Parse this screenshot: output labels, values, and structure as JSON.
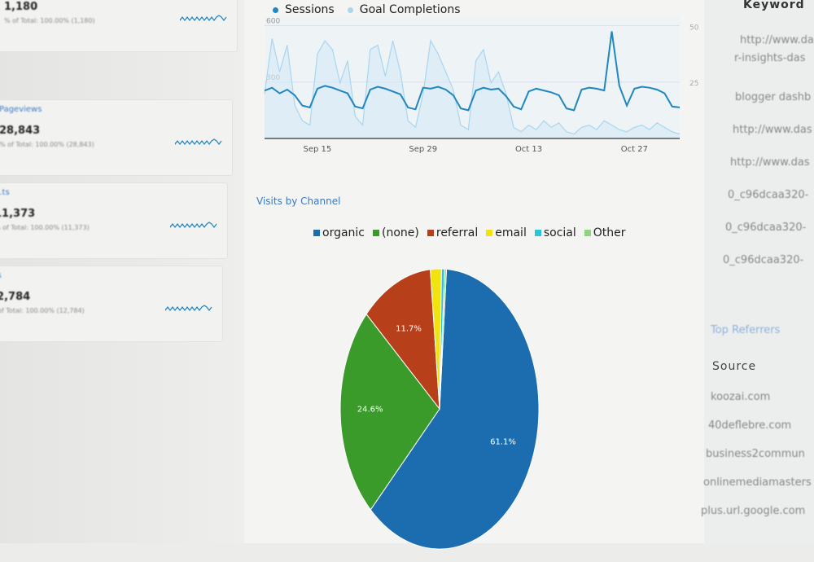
{
  "metrics": [
    {
      "label": "",
      "value": "1,180",
      "sub": "% of Total: 100.00% (1,180)"
    },
    {
      "label": "Pageviews",
      "value": "28,843",
      "sub": "% of Total: 100.00% (28,843)"
    },
    {
      "label": "...ts",
      "value": "11,373",
      "sub": "% of Total: 100.00% (11,373)"
    },
    {
      "label": "...s",
      "value": "12,784",
      "sub": "% of Total: 100.00% (12,784)"
    }
  ],
  "keywords": {
    "header": "Keyword",
    "items": [
      "http://www.das",
      "r-insights-das",
      "blogger dashb",
      "http://www.das",
      "http://www.das",
      "0_c96dcaa320-",
      "0_c96dcaa320-",
      "0_c96dcaa320-"
    ]
  },
  "referrers": {
    "title": "Top Referrers",
    "header": "Source",
    "items": [
      "koozai.com",
      "40deflebre.com",
      "business2commun",
      "onlinemediamasters",
      "plus.url.google.com"
    ]
  },
  "accent": "#2f8fcf",
  "chart_data": [
    {
      "type": "line",
      "legend": [
        "Sessions",
        "Goal Completions"
      ],
      "legend_placement": "top-left",
      "colors": [
        "#1f86c2",
        "#a9d6ef"
      ],
      "y_left": {
        "ticks": [
          "600",
          "300"
        ],
        "range": [
          0,
          650
        ]
      },
      "y_right": {
        "ticks": [
          "50",
          "25"
        ],
        "range": [
          0,
          55
        ]
      },
      "x_ticks": [
        {
          "label": "Sep 15",
          "date": "Sep 15"
        },
        {
          "label": "Sep 29",
          "date": "Sep 29"
        },
        {
          "label": "Oct 13",
          "date": "Oct 13"
        },
        {
          "label": "Oct 27",
          "date": "Oct 27"
        }
      ],
      "dates": [
        "Sep 8",
        "Sep 9",
        "Sep 10",
        "Sep 11",
        "Sep 12",
        "Sep 13",
        "Sep 14",
        "Sep 15",
        "Sep 16",
        "Sep 17",
        "Sep 18",
        "Sep 19",
        "Sep 20",
        "Sep 21",
        "Sep 22",
        "Sep 23",
        "Sep 24",
        "Sep 25",
        "Sep 26",
        "Sep 27",
        "Sep 28",
        "Sep 29",
        "Sep 30",
        "Oct 1",
        "Oct 2",
        "Oct 3",
        "Oct 4",
        "Oct 5",
        "Oct 6",
        "Oct 7",
        "Oct 8",
        "Oct 9",
        "Oct 10",
        "Oct 11",
        "Oct 12",
        "Oct 13",
        "Oct 14",
        "Oct 15",
        "Oct 16",
        "Oct 17",
        "Oct 18",
        "Oct 19",
        "Oct 20",
        "Oct 21",
        "Oct 22",
        "Oct 23",
        "Oct 24",
        "Oct 25",
        "Oct 26",
        "Oct 27",
        "Oct 28",
        "Oct 29",
        "Oct 30",
        "Oct 31",
        "Nov 1",
        "Nov 2"
      ],
      "series": [
        {
          "name": "Sessions",
          "axis": "left",
          "values": [
            255,
            270,
            240,
            260,
            230,
            175,
            165,
            265,
            280,
            270,
            255,
            240,
            170,
            160,
            260,
            275,
            265,
            250,
            235,
            165,
            155,
            270,
            265,
            275,
            260,
            230,
            160,
            150,
            255,
            270,
            260,
            265,
            225,
            170,
            155,
            250,
            265,
            255,
            245,
            230,
            160,
            150,
            260,
            270,
            265,
            255,
            570,
            280,
            175,
            265,
            275,
            270,
            260,
            240,
            170,
            165
          ]
        },
        {
          "name": "Goal Completions",
          "axis": "right",
          "values": [
            20,
            45,
            30,
            42,
            15,
            8,
            6,
            38,
            44,
            40,
            25,
            35,
            10,
            6,
            40,
            42,
            28,
            44,
            30,
            8,
            5,
            20,
            44,
            38,
            30,
            22,
            6,
            4,
            35,
            40,
            25,
            30,
            20,
            5,
            3,
            6,
            4,
            8,
            5,
            7,
            3,
            2,
            5,
            6,
            4,
            8,
            6,
            4,
            3,
            5,
            6,
            4,
            7,
            5,
            3,
            2
          ]
        }
      ]
    },
    {
      "type": "pie",
      "title": "Visits by Channel",
      "legend_placement": "top",
      "categories": [
        "organic",
        "(none)",
        "referral",
        "email",
        "social",
        "Other"
      ],
      "values": [
        61.1,
        24.6,
        11.7,
        1.8,
        0.5,
        0.3
      ],
      "labels": [
        "61.1%",
        "24.6%",
        "11.7%",
        "",
        "",
        ""
      ],
      "colors": [
        "#1c6db0",
        "#3a9a2a",
        "#b7401a",
        "#f1e30f",
        "#27c6dc",
        "#8bd67a"
      ]
    }
  ]
}
